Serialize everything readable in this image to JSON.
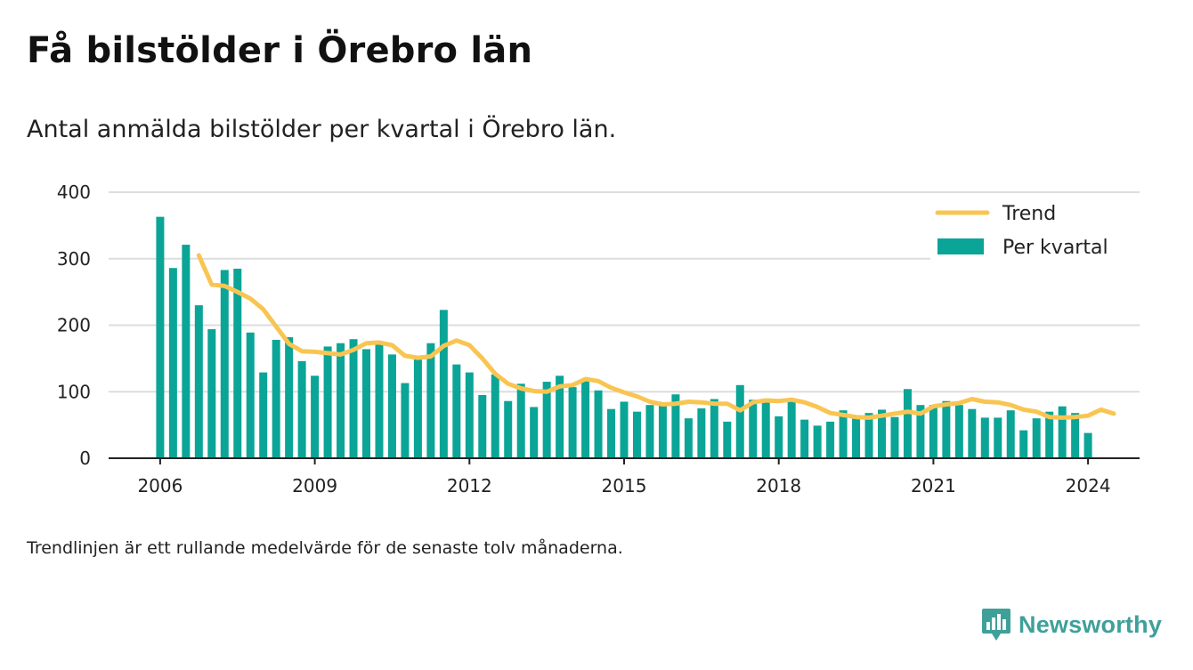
{
  "header": {
    "title": "Få bilstölder i Örebro län",
    "subtitle": "Antal anmälda bilstölder per kvartal i Örebro län."
  },
  "footer": {
    "note": "Trendlinjen är ett rullande medelvärde för de senaste tolv månaderna.",
    "brand": "Newsworthy"
  },
  "colors": {
    "bar": "#0aa596",
    "trend": "#f9c552",
    "grid": "#dddddd",
    "axis": "#222222",
    "brand": "#3fa09a"
  },
  "icons": {
    "brand": "newsworthy-chart-bubble-icon"
  },
  "chart_data": {
    "type": "bar",
    "title": "Få bilstölder i Örebro län",
    "subtitle": "Antal anmälda bilstölder per kvartal i Örebro län.",
    "xlabel": "",
    "ylabel": "",
    "ylim": [
      0,
      400
    ],
    "yticks": [
      0,
      100,
      200,
      300,
      400
    ],
    "xticks": [
      "2006",
      "2009",
      "2012",
      "2015",
      "2018",
      "2021",
      "2024"
    ],
    "xrange": [
      2005.0,
      2025.0
    ],
    "grid": true,
    "legend_position": "top-right",
    "x_start": 2006.0,
    "x_step": 0.25,
    "series": [
      {
        "name": "Per kvartal",
        "type": "bar",
        "values": [
          363,
          286,
          321,
          230,
          194,
          283,
          285,
          189,
          129,
          178,
          182,
          146,
          124,
          168,
          173,
          179,
          164,
          171,
          156,
          113,
          153,
          173,
          223,
          141,
          129,
          95,
          126,
          86,
          112,
          77,
          115,
          124,
          107,
          118,
          102,
          74,
          85,
          70,
          80,
          83,
          96,
          60,
          75,
          89,
          55,
          110,
          88,
          85,
          63,
          88,
          58,
          49,
          55,
          72,
          60,
          68,
          73,
          62,
          104,
          80,
          80,
          86,
          80,
          74,
          61,
          61,
          72,
          42,
          60,
          70,
          78,
          68,
          38
        ]
      },
      {
        "name": "Trend",
        "type": "line",
        "x_start": 2006.75,
        "values": [
          305,
          261,
          259,
          250,
          240,
          224,
          198,
          172,
          161,
          160,
          158,
          156,
          163,
          173,
          174,
          170,
          154,
          151,
          153,
          169,
          177,
          170,
          150,
          127,
          112,
          105,
          101,
          100,
          108,
          110,
          119,
          116,
          106,
          99,
          93,
          85,
          81,
          82,
          85,
          84,
          82,
          82,
          72,
          84,
          87,
          86,
          88,
          84,
          77,
          68,
          65,
          62,
          61,
          64,
          67,
          70,
          67,
          78,
          81,
          83,
          89,
          85,
          84,
          80,
          73,
          70,
          62,
          61,
          62,
          64,
          73,
          67
        ]
      }
    ]
  }
}
